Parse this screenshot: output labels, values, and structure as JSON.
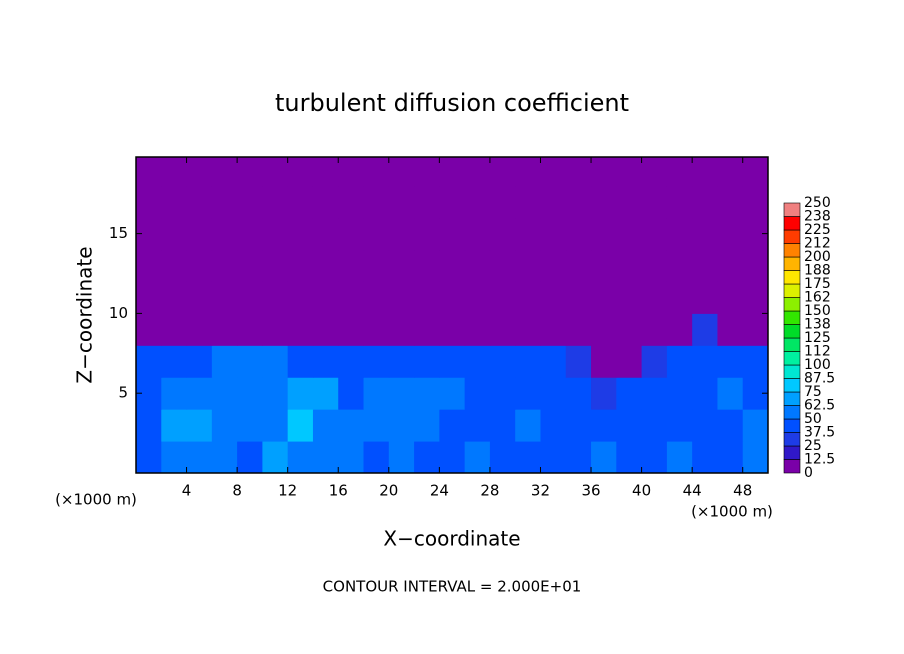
{
  "chart_data": {
    "type": "contour",
    "title": "turbulent diffusion coefficient",
    "x_label": "X−coordinate",
    "y_label": "Z−coordinate",
    "x_unit": "(×1000 m)",
    "x_unit_right": "(×1000 m)",
    "footnote": "CONTOUR INTERVAL = 2.000E+01",
    "xlim": [
      0,
      50
    ],
    "ylim": [
      0,
      19.8
    ],
    "xticks": [
      4,
      8,
      12,
      16,
      20,
      24,
      28,
      32,
      36,
      40,
      44,
      48
    ],
    "yticks": [
      5,
      10,
      15
    ],
    "x": [
      1,
      3,
      5,
      7,
      9,
      11,
      13,
      15,
      17,
      19,
      21,
      23,
      25,
      27,
      29,
      31,
      33,
      35,
      37,
      39,
      41,
      43,
      45,
      47,
      49
    ],
    "y": [
      1,
      3,
      5,
      7,
      9,
      11,
      13,
      15,
      17,
      19
    ],
    "z": [
      [
        45,
        55,
        60,
        50,
        45,
        70,
        50,
        60,
        55,
        45,
        50,
        45,
        45,
        50,
        45,
        45,
        45,
        40,
        50,
        45,
        45,
        50,
        40,
        45,
        50
      ],
      [
        40,
        65,
        70,
        55,
        50,
        55,
        75,
        60,
        50,
        55,
        55,
        50,
        40,
        45,
        45,
        50,
        45,
        40,
        45,
        40,
        40,
        40,
        40,
        45,
        55
      ],
      [
        40,
        55,
        60,
        50,
        55,
        60,
        65,
        70,
        45,
        50,
        55,
        60,
        55,
        45,
        40,
        45,
        45,
        40,
        35,
        40,
        40,
        40,
        45,
        50,
        45
      ],
      [
        40,
        40,
        40,
        55,
        50,
        55,
        45,
        40,
        40,
        45,
        40,
        45,
        40,
        40,
        40,
        40,
        40,
        35,
        0,
        0,
        35,
        40,
        45,
        45,
        40
      ],
      [
        0,
        0,
        0,
        0,
        0,
        0,
        0,
        0,
        0,
        0,
        0,
        0,
        0,
        0,
        0,
        0,
        0,
        0,
        0,
        0,
        0,
        0,
        30,
        0,
        0
      ],
      [
        0,
        0,
        0,
        0,
        0,
        0,
        0,
        0,
        0,
        0,
        0,
        0,
        0,
        0,
        0,
        0,
        0,
        0,
        0,
        0,
        0,
        0,
        0,
        0,
        0
      ],
      [
        0,
        0,
        0,
        0,
        0,
        0,
        0,
        0,
        0,
        0,
        0,
        0,
        0,
        0,
        0,
        0,
        0,
        0,
        0,
        0,
        0,
        0,
        0,
        0,
        0
      ],
      [
        0,
        0,
        0,
        0,
        0,
        0,
        0,
        0,
        0,
        0,
        0,
        0,
        0,
        0,
        0,
        0,
        0,
        0,
        0,
        0,
        0,
        0,
        0,
        0,
        0
      ],
      [
        0,
        0,
        0,
        0,
        0,
        0,
        0,
        0,
        0,
        0,
        0,
        0,
        0,
        0,
        0,
        0,
        0,
        0,
        0,
        0,
        0,
        0,
        0,
        0,
        0
      ],
      [
        0,
        0,
        0,
        0,
        0,
        0,
        0,
        0,
        0,
        0,
        0,
        0,
        0,
        0,
        0,
        0,
        0,
        0,
        0,
        0,
        0,
        0,
        0,
        0,
        0
      ]
    ],
    "levels": [
      0,
      12.5,
      25,
      37.5,
      50,
      62.5,
      75,
      87.5,
      100,
      {
        "value": 112.5,
        "label": "112"
      },
      125,
      {
        "value": 137.5,
        "label": "138"
      },
      150,
      {
        "value": 162.5,
        "label": "162"
      },
      175,
      {
        "value": 187.5,
        "label": "188"
      },
      200,
      {
        "value": 212.5,
        "label": "212"
      },
      225,
      {
        "value": 237.5,
        "label": "238"
      },
      250
    ],
    "colors": [
      "#7a00a8",
      "#3018c8",
      "#1e3ce6",
      "#0050ff",
      "#0078ff",
      "#00a0ff",
      "#00c8ff",
      "#00e6d2",
      "#00f0a0",
      "#00e664",
      "#00dc28",
      "#32e600",
      "#8cf000",
      "#dcf000",
      "#ffe600",
      "#ffb400",
      "#ff8200",
      "#ff3c00",
      "#ff0000",
      "#f08080"
    ]
  }
}
